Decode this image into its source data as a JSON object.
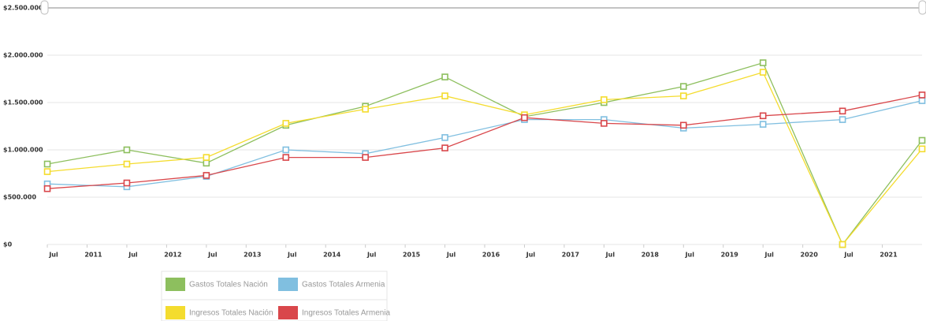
{
  "chart_data": {
    "type": "line",
    "x": [
      2010.5,
      2011.5,
      2012.5,
      2013.5,
      2014.5,
      2015.5,
      2016.5,
      2017.5,
      2018.5,
      2019.5,
      2020.5,
      2021.5
    ],
    "xlim": [
      2010.45,
      2021.5
    ],
    "xticks": [
      {
        "value": 2010.5,
        "label": "Jul"
      },
      {
        "value": 2011,
        "label": "2011"
      },
      {
        "value": 2011.5,
        "label": "Jul"
      },
      {
        "value": 2012,
        "label": "2012"
      },
      {
        "value": 2012.5,
        "label": "Jul"
      },
      {
        "value": 2013,
        "label": "2013"
      },
      {
        "value": 2013.5,
        "label": "Jul"
      },
      {
        "value": 2014,
        "label": "2014"
      },
      {
        "value": 2014.5,
        "label": "Jul"
      },
      {
        "value": 2015,
        "label": "2015"
      },
      {
        "value": 2015.5,
        "label": "Jul"
      },
      {
        "value": 2016,
        "label": "2016"
      },
      {
        "value": 2016.5,
        "label": "Jul"
      },
      {
        "value": 2017,
        "label": "2017"
      },
      {
        "value": 2017.5,
        "label": "Jul"
      },
      {
        "value": 2018,
        "label": "2018"
      },
      {
        "value": 2018.5,
        "label": "Jul"
      },
      {
        "value": 2019,
        "label": "2019"
      },
      {
        "value": 2019.5,
        "label": "Jul"
      },
      {
        "value": 2020,
        "label": "2020"
      },
      {
        "value": 2020.5,
        "label": "Jul"
      },
      {
        "value": 2021,
        "label": "2021"
      }
    ],
    "ylim": [
      0,
      2500000
    ],
    "yticks": [
      {
        "value": 0,
        "label": "$0"
      },
      {
        "value": 500000,
        "label": "$500.000"
      },
      {
        "value": 1000000,
        "label": "$1.000.000"
      },
      {
        "value": 1500000,
        "label": "$1.500.000"
      },
      {
        "value": 2000000,
        "label": "$2.000.000"
      },
      {
        "value": 2500000,
        "label": "$2.500.000"
      }
    ],
    "grid": true,
    "series": [
      {
        "name": "Gastos Totales Nación",
        "color": "#8dbf5e",
        "values": [
          850000,
          1000000,
          860000,
          1260000,
          1460000,
          1770000,
          1350000,
          1500000,
          1670000,
          1920000,
          0,
          1100000
        ]
      },
      {
        "name": "Gastos Totales Armenia",
        "color": "#80bfe0",
        "values": [
          640000,
          610000,
          720000,
          1000000,
          960000,
          1130000,
          1320000,
          1320000,
          1230000,
          1270000,
          1320000,
          1520000
        ]
      },
      {
        "name": "Ingresos Totales Nación",
        "color": "#f4dc2e",
        "values": [
          770000,
          850000,
          920000,
          1280000,
          1430000,
          1570000,
          1370000,
          1530000,
          1570000,
          1820000,
          0,
          1010000
        ]
      },
      {
        "name": "Ingresos Totales Armenia",
        "color": "#d9474b",
        "values": [
          590000,
          650000,
          730000,
          920000,
          920000,
          1020000,
          1340000,
          1280000,
          1260000,
          1360000,
          1410000,
          1580000
        ]
      }
    ]
  }
}
